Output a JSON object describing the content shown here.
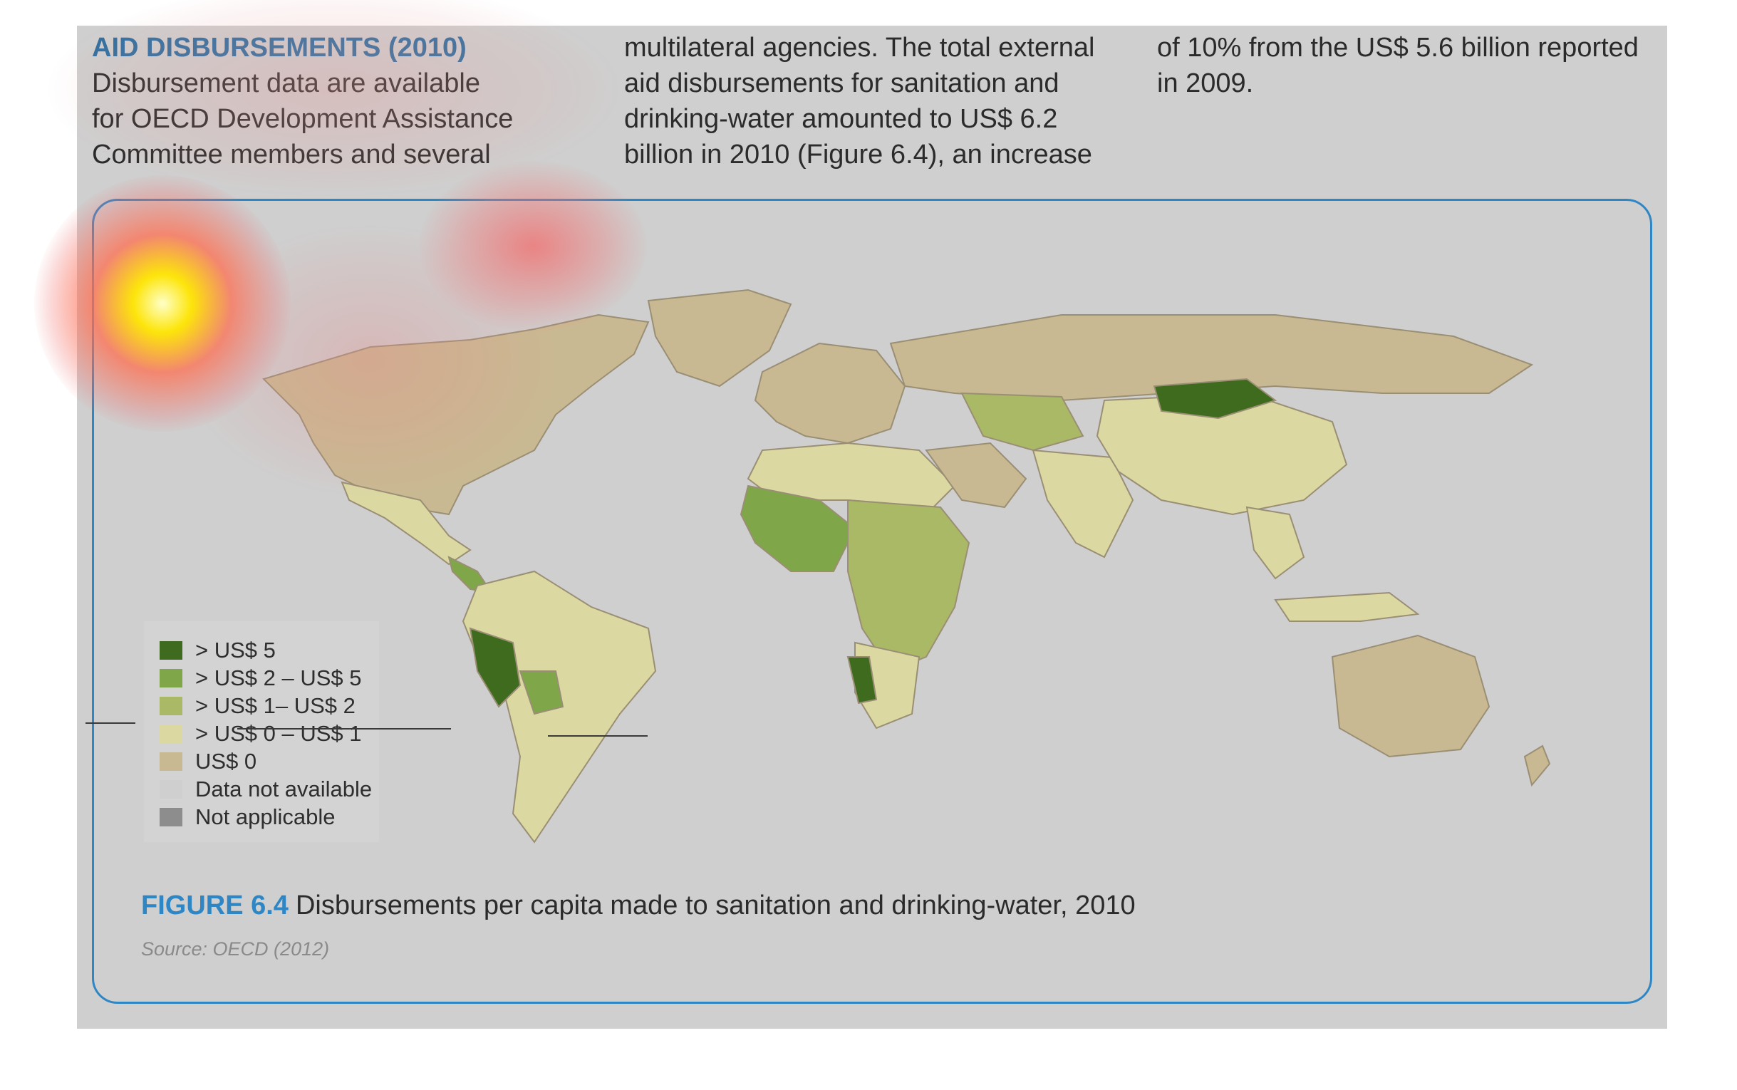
{
  "text": {
    "heading": "AID DISBURSEMENTS (2010)",
    "col1_lines": [
      "Disbursement data are available",
      "for OECD Development Assistance",
      "Committee members and several"
    ],
    "col2_lines": [
      "multilateral agencies. The total external",
      "aid disbursements for sanitation and",
      "drinking-water amounted to US$ 6.2",
      "billion in 2010 (Figure 6.4), an increase"
    ],
    "col3_lines": [
      "of 10% from the US$ 5.6 billion reported",
      "in 2009."
    ]
  },
  "figure": {
    "number": "FIGURE 6.4",
    "caption": "Disbursements per capita made to sanitation and drinking-water, 2010",
    "source": "Source: OECD (2012)"
  },
  "legend": [
    {
      "label": "> US$ 5",
      "color": "#3f6b1e"
    },
    {
      "label": "> US$ 2 – US$ 5",
      "color": "#7fa648"
    },
    {
      "label": "> US$ 1– US$ 2",
      "color": "#aab965"
    },
    {
      "label": "> US$ 0 – US$ 1",
      "color": "#dbd8a2"
    },
    {
      "label": "US$ 0",
      "color": "#c9b992"
    },
    {
      "label": "Data not available",
      "color": "#cfcfcf"
    },
    {
      "label": "Not applicable",
      "color": "#8d8d8d"
    }
  ]
}
